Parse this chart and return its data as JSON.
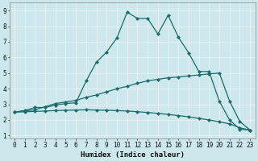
{
  "xlabel": "Humidex (Indice chaleur)",
  "bg_color": "#cce8ed",
  "line_color": "#1a6b6b",
  "grid_color": "#f0f0f0",
  "xlim": [
    -0.5,
    23.5
  ],
  "ylim": [
    0.8,
    9.5
  ],
  "xticks": [
    0,
    1,
    2,
    3,
    4,
    5,
    6,
    7,
    8,
    9,
    10,
    11,
    12,
    13,
    14,
    15,
    16,
    17,
    18,
    19,
    20,
    21,
    22,
    23
  ],
  "yticks": [
    1,
    2,
    3,
    4,
    5,
    6,
    7,
    8,
    9
  ],
  "curve1_x": [
    0,
    1,
    2,
    3,
    4,
    5,
    6,
    7,
    8,
    9,
    10,
    11,
    12,
    13,
    14,
    15,
    16,
    17,
    18,
    19,
    20,
    21,
    22,
    23
  ],
  "curve1_y": [
    2.5,
    2.6,
    2.8,
    2.8,
    2.95,
    3.05,
    3.1,
    4.5,
    5.7,
    6.35,
    7.25,
    8.9,
    8.5,
    8.5,
    7.5,
    8.7,
    7.3,
    6.3,
    5.1,
    5.1,
    3.2,
    2.0,
    1.4,
    1.35
  ],
  "curve2_x": [
    0,
    1,
    2,
    3,
    4,
    5,
    6,
    7,
    8,
    9,
    10,
    11,
    12,
    13,
    14,
    15,
    16,
    17,
    18,
    19,
    20,
    21,
    22,
    23
  ],
  "curve2_y": [
    2.5,
    2.58,
    2.65,
    2.85,
    3.05,
    3.15,
    3.25,
    3.45,
    3.6,
    3.8,
    4.0,
    4.15,
    4.35,
    4.5,
    4.6,
    4.7,
    4.75,
    4.82,
    4.88,
    4.95,
    5.0,
    3.2,
    1.9,
    1.35
  ],
  "curve3_x": [
    0,
    1,
    2,
    3,
    4,
    5,
    6,
    7,
    8,
    9,
    10,
    11,
    12,
    13,
    14,
    15,
    16,
    17,
    18,
    19,
    20,
    21,
    22,
    23
  ],
  "curve3_y": [
    2.5,
    2.52,
    2.55,
    2.57,
    2.6,
    2.62,
    2.63,
    2.65,
    2.63,
    2.62,
    2.6,
    2.57,
    2.53,
    2.48,
    2.42,
    2.35,
    2.28,
    2.2,
    2.1,
    2.0,
    1.88,
    1.75,
    1.5,
    1.35
  ]
}
